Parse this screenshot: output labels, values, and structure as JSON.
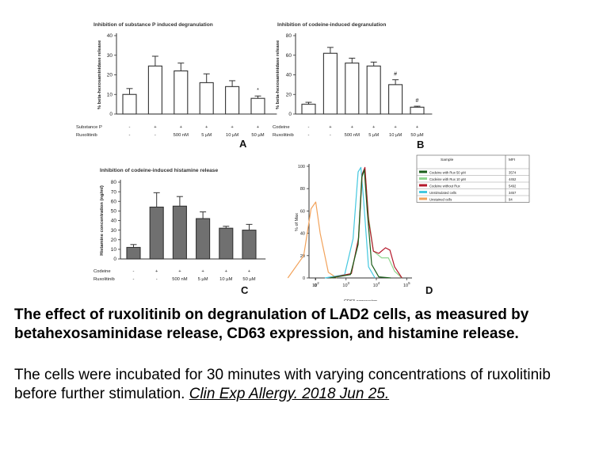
{
  "figure": {
    "panels": [
      {
        "letter": "A",
        "title": "Inhibition of substance P induced degranulation",
        "ylabel": "% beta-hexosaminidase release",
        "row_labels": [
          "Substance P",
          "Ruxolitinib"
        ],
        "row1_marks": [
          "-",
          "+",
          "+",
          "+",
          "+",
          "+"
        ],
        "row2_marks": [
          "-",
          "-",
          "500 nM",
          "5 µM",
          "10 µM",
          "50 µM"
        ],
        "significance": [
          "",
          "",
          "",
          "",
          "",
          "*"
        ]
      },
      {
        "letter": "B",
        "title": "Inhibition of codeine-induced degranulation",
        "ylabel": "% beta-hexosaminidase release",
        "row_labels": [
          "Codeine",
          "Ruxolitinib"
        ],
        "row1_marks": [
          "-",
          "+",
          "+",
          "+",
          "+",
          "+"
        ],
        "row2_marks": [
          "-",
          "-",
          "500 nM",
          "5 µM",
          "10 µM",
          "50 µM"
        ],
        "significance": [
          "",
          "",
          "",
          "",
          "#",
          "#"
        ]
      },
      {
        "letter": "C",
        "title": "Inhibition of codeine-induced histamine release",
        "ylabel": "Histamine concentration (ng/ml)",
        "row_labels": [
          "Codeine",
          "Ruxolitinib"
        ],
        "row1_marks": [
          "-",
          "+",
          "+",
          "+",
          "+",
          "+"
        ],
        "row2_marks": [
          "-",
          "-",
          "500 nM",
          "5 µM",
          "10 µM",
          "50 µM"
        ],
        "significance": [
          "",
          "",
          "",
          "",
          "",
          ""
        ]
      },
      {
        "letter": "D",
        "title": "",
        "ylabel": "% of Max",
        "xlabel": "CD63 expression",
        "legend_header": [
          "Sample",
          "MFI"
        ]
      }
    ]
  },
  "chart_data": [
    {
      "type": "bar",
      "panel": "A",
      "title": "Inhibition of substance P induced degranulation",
      "ylabel": "% beta-hexosaminidase release",
      "ylim": [
        0,
        40
      ],
      "yticks": [
        0,
        10,
        20,
        30,
        40
      ],
      "values": [
        10,
        24.5,
        22,
        16,
        14,
        8
      ],
      "errors": [
        3,
        5,
        4,
        4.5,
        3,
        1.2
      ],
      "bar_color": "#ffffff"
    },
    {
      "type": "bar",
      "panel": "B",
      "title": "Inhibition of codeine-induced degranulation",
      "ylabel": "% beta-hexosaminidase release",
      "ylim": [
        0,
        80
      ],
      "yticks": [
        0,
        20,
        40,
        60,
        80
      ],
      "values": [
        10,
        62,
        52,
        49,
        30,
        7
      ],
      "errors": [
        2,
        6,
        5,
        4,
        5,
        1
      ],
      "bar_color": "#ffffff"
    },
    {
      "type": "bar",
      "panel": "C",
      "title": "Inhibition of codeine-induced histamine release",
      "ylabel": "Histamine concentration (ng/ml)",
      "ylim": [
        0,
        80
      ],
      "yticks": [
        0,
        10,
        20,
        30,
        40,
        50,
        60,
        70,
        80
      ],
      "values": [
        12,
        54,
        55,
        42,
        32,
        30
      ],
      "errors": [
        3,
        15,
        10,
        7,
        2,
        6
      ],
      "bar_color": "#707070"
    },
    {
      "type": "line",
      "panel": "D",
      "xlabel": "CD63 expression",
      "ylabel": "% of Max",
      "xscale": "log",
      "ylim": [
        0,
        100
      ],
      "yticks": [
        0,
        20,
        40,
        60,
        80,
        100
      ],
      "xticks": [
        "0",
        "10^2",
        "10^3",
        "10^4",
        "10^5"
      ],
      "series": [
        {
          "name": "Codeine with Rux 50 µM",
          "mfi": "3574",
          "color": "#1a5e1a",
          "points": [
            [
              300,
              0
            ],
            [
              1400,
              3
            ],
            [
              2500,
              30
            ],
            [
              3300,
              90
            ],
            [
              4000,
              97
            ],
            [
              5000,
              60
            ],
            [
              7000,
              12
            ],
            [
              12000,
              1
            ],
            [
              30000,
              0
            ]
          ]
        },
        {
          "name": "Codeine with Rux 10 µM",
          "mfi": "4452",
          "color": "#8fd68f",
          "points": [
            [
              300,
              0
            ],
            [
              1500,
              4
            ],
            [
              2600,
              35
            ],
            [
              3400,
              92
            ],
            [
              4200,
              97
            ],
            [
              5500,
              55
            ],
            [
              8000,
              24
            ],
            [
              15000,
              18
            ],
            [
              25000,
              18
            ],
            [
              40000,
              6
            ],
            [
              70000,
              0
            ]
          ]
        },
        {
          "name": "Codeine without Rux",
          "mfi": "5492",
          "color": "#b5182b",
          "points": [
            [
              300,
              0
            ],
            [
              1500,
              4
            ],
            [
              2600,
              36
            ],
            [
              3400,
              93
            ],
            [
              4200,
              99
            ],
            [
              5500,
              52
            ],
            [
              8000,
              24
            ],
            [
              12000,
              22
            ],
            [
              20000,
              27
            ],
            [
              28000,
              25
            ],
            [
              40000,
              10
            ],
            [
              70000,
              0
            ]
          ]
        },
        {
          "name": "Unstimulated cells",
          "mfi": "3457",
          "color": "#44c8e0",
          "points": [
            [
              200,
              0
            ],
            [
              900,
              3
            ],
            [
              1700,
              35
            ],
            [
              2500,
              95
            ],
            [
              3100,
              99
            ],
            [
              3800,
              70
            ],
            [
              5500,
              10
            ],
            [
              9000,
              0
            ]
          ]
        },
        {
          "name": "Unstained cells",
          "mfi": "94",
          "color": "#f2a25a",
          "points": [
            [
              12,
              0
            ],
            [
              40,
              20
            ],
            [
              70,
              62
            ],
            [
              100,
              68
            ],
            [
              140,
              40
            ],
            [
              260,
              5
            ],
            [
              500,
              0
            ]
          ]
        }
      ]
    }
  ],
  "caption": {
    "title": "The effect of ruxolitinib on degranulation of LAD2 cells, as measured by betahexosaminidase release, CD63 expression, and histamine release.",
    "body": "The cells were incubated for 30 minutes with varying concentrations of ruxolitinib before further stimulation. ",
    "citation": "Clin Exp Allergy. 2018 Jun 25."
  }
}
